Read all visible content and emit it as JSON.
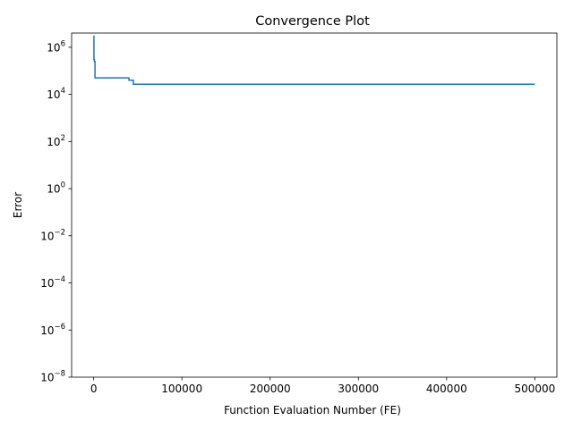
{
  "chart_data": {
    "type": "line",
    "title": "Convergence Plot",
    "xlabel": "Function Evaluation Number (FE)",
    "ylabel": "Error",
    "yscale": "log",
    "xlim": [
      -25000,
      525000
    ],
    "ylim": [
      1e-08,
      4000000.0
    ],
    "xticks": [
      {
        "value": 0,
        "label": "0"
      },
      {
        "value": 100000,
        "label": "100000"
      },
      {
        "value": 200000,
        "label": "200000"
      },
      {
        "value": 300000,
        "label": "300000"
      },
      {
        "value": 400000,
        "label": "400000"
      },
      {
        "value": 500000,
        "label": "500000"
      }
    ],
    "yticks": [
      {
        "value": 1e-08,
        "base": "10",
        "exp": "−8"
      },
      {
        "value": 1e-06,
        "base": "10",
        "exp": "−6"
      },
      {
        "value": 0.0001,
        "base": "10",
        "exp": "−4"
      },
      {
        "value": 0.01,
        "base": "10",
        "exp": "−2"
      },
      {
        "value": 1,
        "base": "10",
        "exp": "0"
      },
      {
        "value": 100,
        "base": "10",
        "exp": "2"
      },
      {
        "value": 10000,
        "base": "10",
        "exp": "4"
      },
      {
        "value": 1000000,
        "base": "10",
        "exp": "6"
      }
    ],
    "grid": false,
    "series": [
      {
        "name": "error",
        "color": "#1f77b4",
        "step": true,
        "x": [
          0,
          300,
          800,
          1500,
          40000,
          45000,
          500000
        ],
        "y": [
          3000000,
          300000,
          250000,
          50000,
          40000,
          27000,
          27000
        ]
      }
    ]
  }
}
